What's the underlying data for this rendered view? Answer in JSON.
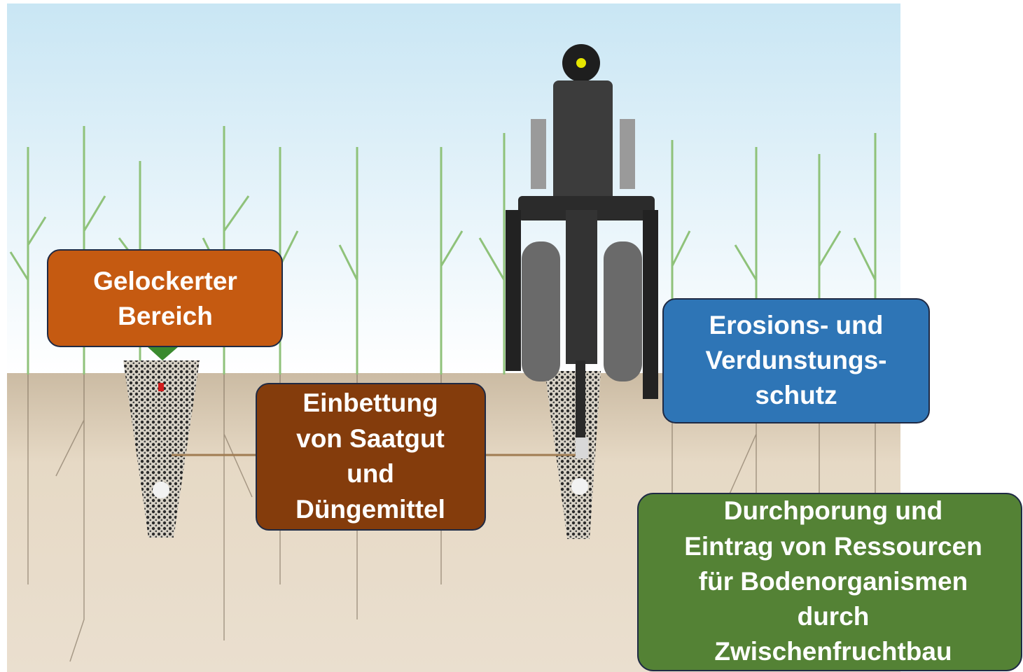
{
  "labels": [
    {
      "lines": [
        "Gelockerter",
        "Bereich"
      ]
    },
    {
      "lines": [
        "Einbettung",
        "von Saatgut",
        "und",
        "Düngemittel"
      ]
    },
    {
      "lines": [
        "Erosions- und",
        "Verdunstungs-",
        "schutz"
      ]
    },
    {
      "lines": [
        "Durchporung und",
        "Eintrag von Ressourcen",
        "für Bodenorganismen",
        "durch",
        "Zwischenfruchtbau"
      ]
    }
  ]
}
